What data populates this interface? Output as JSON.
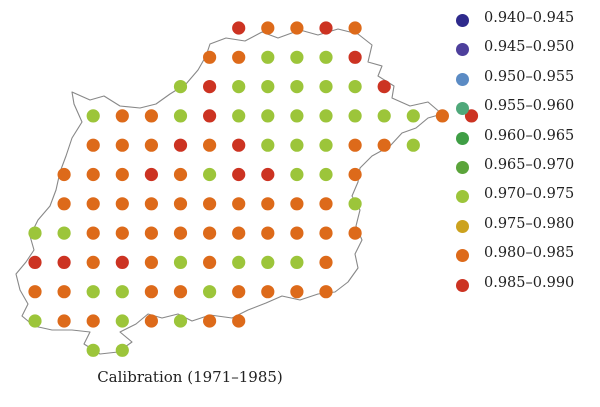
{
  "caption": "Calibration (1971–1985)",
  "legend": {
    "items": [
      {
        "label": "0.940–0.945",
        "color": "#2e2a8c"
      },
      {
        "label": "0.945–0.950",
        "color": "#4d3f9c"
      },
      {
        "label": "0.950–0.955",
        "color": "#5b8bc4"
      },
      {
        "label": "0.955–0.960",
        "color": "#4fa87a"
      },
      {
        "label": "0.960–0.965",
        "color": "#3f9e45"
      },
      {
        "label": "0.965–0.970",
        "color": "#5ba43a"
      },
      {
        "label": "0.970–0.975",
        "color": "#9cc53a"
      },
      {
        "label": "0.975–0.980",
        "color": "#cca21e"
      },
      {
        "label": "0.980–0.985",
        "color": "#dd6a1a"
      },
      {
        "label": "0.985–0.990",
        "color": "#cc3322"
      }
    ]
  },
  "grid_points": {
    "rows": [
      {
        "start_col": 7,
        "classes": [
          "0.985–0.990",
          "0.980–0.985",
          "0.980–0.985",
          "0.985–0.990",
          "0.980–0.985"
        ]
      },
      {
        "start_col": 6,
        "classes": [
          "0.980–0.985",
          "0.980–0.985",
          "0.970–0.975",
          "0.970–0.975",
          "0.970–0.975",
          "0.985–0.990"
        ]
      },
      {
        "start_col": 5,
        "classes": [
          "0.970–0.975",
          "0.985–0.990",
          "0.970–0.975",
          "0.970–0.975",
          "0.970–0.975",
          "0.970–0.975",
          "0.970–0.975",
          "0.985–0.990"
        ]
      },
      {
        "start_col": 2,
        "classes": [
          "0.970–0.975",
          "0.980–0.985",
          "0.980–0.985",
          "0.970–0.975",
          "0.985–0.990",
          "0.970–0.975",
          "0.970–0.975",
          "0.970–0.975",
          "0.970–0.975",
          "0.970–0.975",
          "0.970–0.975",
          "0.970–0.975",
          "0.980–0.985",
          "0.985–0.990"
        ]
      },
      {
        "start_col": 2,
        "classes": [
          "0.980–0.985",
          "0.980–0.985",
          "0.980–0.985",
          "0.985–0.990",
          "0.980–0.985",
          "0.985–0.990",
          "0.970–0.975",
          "0.970–0.975",
          "0.970–0.975",
          "0.980–0.985",
          "0.980–0.985",
          "0.970–0.975"
        ]
      },
      {
        "start_col": 1,
        "classes": [
          "0.980–0.985",
          "0.980–0.985",
          "0.980–0.985",
          "0.985–0.990",
          "0.980–0.985",
          "0.970–0.975",
          "0.985–0.990",
          "0.985–0.990",
          "0.970–0.975",
          "0.970–0.975",
          "0.980–0.985"
        ]
      },
      {
        "start_col": 1,
        "classes": [
          "0.980–0.985",
          "0.980–0.985",
          "0.980–0.985",
          "0.980–0.985",
          "0.980–0.985",
          "0.980–0.985",
          "0.980–0.985",
          "0.980–0.985",
          "0.980–0.985",
          "0.980–0.985",
          "0.970–0.975"
        ]
      },
      {
        "start_col": 0,
        "classes": [
          "0.970–0.975",
          "0.970–0.975",
          "0.980–0.985",
          "0.980–0.985",
          "0.980–0.985",
          "0.980–0.985",
          "0.980–0.985",
          "0.980–0.985",
          "0.980–0.985",
          "0.980–0.985",
          "0.980–0.985",
          "0.980–0.985"
        ]
      },
      {
        "start_col": 0,
        "classes": [
          "0.985–0.990",
          "0.985–0.990",
          "0.980–0.985",
          "0.985–0.990",
          "0.980–0.985",
          "0.970–0.975",
          "0.980–0.985",
          "0.970–0.975",
          "0.970–0.975",
          "0.970–0.975",
          "0.980–0.985"
        ]
      },
      {
        "start_col": 0,
        "classes": [
          "0.980–0.985",
          "0.980–0.985",
          "0.970–0.975",
          "0.970–0.975",
          "0.980–0.985",
          "0.980–0.985",
          "0.970–0.975",
          "0.980–0.985",
          "0.980–0.985",
          "0.980–0.985",
          "0.980–0.985"
        ]
      },
      {
        "start_col": 0,
        "classes": [
          "0.970–0.975",
          "0.980–0.985",
          "0.980–0.985",
          "0.970–0.975",
          "0.980–0.985",
          "0.970–0.975",
          "0.980–0.985",
          "0.980–0.985"
        ]
      },
      {
        "start_col": 2,
        "classes": [
          "0.970–0.975",
          "0.970–0.975"
        ]
      }
    ]
  }
}
